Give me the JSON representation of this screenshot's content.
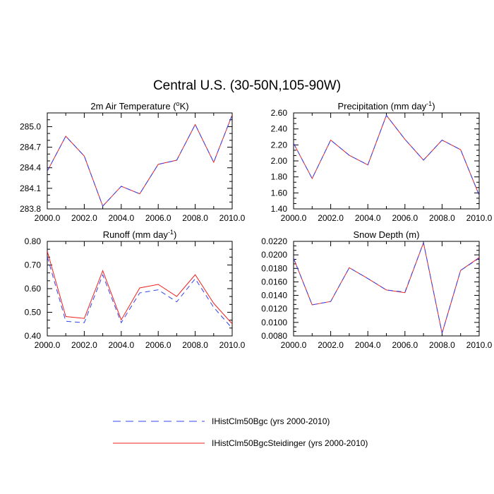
{
  "figure_title": "Central U.S. (30-50N,105-90W)",
  "legend": {
    "entries": [
      {
        "label": "IHistClm50Bgc (yrs 2000-2010)",
        "color": "#3344ee",
        "style": "dashed"
      },
      {
        "label": "IHistClm50BgcSteidinger (yrs 2000-2010)",
        "color": "#ee2222",
        "style": "solid"
      }
    ]
  },
  "chart_data": [
    {
      "type": "line",
      "title": "2m Air Temperature",
      "title_units_base": "K",
      "title_units_sup": "o",
      "xlim": [
        2000,
        2010
      ],
      "ylim": [
        283.8,
        285.2
      ],
      "xticks": [
        "2000.0",
        "2002.0",
        "2004.0",
        "2006.0",
        "2008.0",
        "2010.0"
      ],
      "yticks": [
        "283.8",
        "284.1",
        "284.4",
        "284.7",
        "285.0"
      ],
      "ytick_values": [
        283.8,
        284.1,
        284.4,
        284.7,
        285.0
      ],
      "x": [
        2000,
        2001,
        2002,
        2003,
        2004,
        2005,
        2006,
        2007,
        2008,
        2009,
        2010
      ],
      "series": [
        {
          "name": "IHistClm50Bgc (yrs 2000-2010)",
          "values": [
            284.35,
            284.86,
            284.57,
            283.84,
            284.13,
            284.02,
            284.45,
            284.51,
            285.03,
            284.48,
            285.17
          ]
        },
        {
          "name": "IHistClm50BgcSteidinger (yrs 2000-2010)",
          "values": [
            284.35,
            284.86,
            284.57,
            283.84,
            284.13,
            284.02,
            284.45,
            284.51,
            285.03,
            284.48,
            285.17
          ]
        }
      ]
    },
    {
      "type": "line",
      "title": "Precipitation",
      "title_units_base": "mm day",
      "title_units_sup": "-1",
      "xlim": [
        2000,
        2010
      ],
      "ylim": [
        1.4,
        2.6
      ],
      "xticks": [
        "2000.0",
        "2002.0",
        "2004.0",
        "2006.0",
        "2008.0",
        "2010.0"
      ],
      "yticks": [
        "1.40",
        "1.60",
        "1.80",
        "2.00",
        "2.20",
        "2.40",
        "2.60"
      ],
      "ytick_values": [
        1.4,
        1.6,
        1.8,
        2.0,
        2.2,
        2.4,
        2.6
      ],
      "x": [
        2000,
        2001,
        2002,
        2003,
        2004,
        2005,
        2006,
        2007,
        2008,
        2009,
        2010
      ],
      "series": [
        {
          "name": "IHistClm50Bgc (yrs 2000-2010)",
          "values": [
            2.22,
            1.78,
            2.26,
            2.07,
            1.95,
            2.57,
            2.27,
            2.01,
            2.26,
            2.14,
            1.57
          ]
        },
        {
          "name": "IHistClm50BgcSteidinger (yrs 2000-2010)",
          "values": [
            2.22,
            1.78,
            2.26,
            2.07,
            1.95,
            2.57,
            2.27,
            2.01,
            2.26,
            2.14,
            1.57
          ]
        }
      ]
    },
    {
      "type": "line",
      "title": "Runoff",
      "title_units_base": "mm day",
      "title_units_sup": "-1",
      "xlim": [
        2000,
        2010
      ],
      "ylim": [
        0.4,
        0.8
      ],
      "xticks": [
        "2000.0",
        "2002.0",
        "2004.0",
        "2006.0",
        "2008.0",
        "2010.0"
      ],
      "yticks": [
        "0.40",
        "0.50",
        "0.60",
        "0.70",
        "0.80"
      ],
      "ytick_values": [
        0.4,
        0.5,
        0.6,
        0.7,
        0.8
      ],
      "x": [
        2000,
        2001,
        2002,
        2003,
        2004,
        2005,
        2006,
        2007,
        2008,
        2009,
        2010
      ],
      "series": [
        {
          "name": "IHistClm50Bgc (yrs 2000-2010)",
          "values": [
            0.735,
            0.462,
            0.456,
            0.658,
            0.456,
            0.582,
            0.595,
            0.544,
            0.642,
            0.521,
            0.432
          ]
        },
        {
          "name": "IHistClm50BgcSteidinger (yrs 2000-2010)",
          "values": [
            0.758,
            0.482,
            0.474,
            0.676,
            0.468,
            0.603,
            0.618,
            0.567,
            0.659,
            0.538,
            0.451
          ]
        }
      ]
    },
    {
      "type": "line",
      "title": "Snow Depth",
      "title_units_base": "m",
      "title_units_sup": "",
      "xlim": [
        2000,
        2010
      ],
      "ylim": [
        0.008,
        0.022
      ],
      "xticks": [
        "2000.0",
        "2002.0",
        "2004.0",
        "2006.0",
        "2008.0",
        "2010.0"
      ],
      "yticks": [
        "0.0080",
        "0.0100",
        "0.0120",
        "0.0140",
        "0.0160",
        "0.0180",
        "0.0200",
        "0.0220"
      ],
      "ytick_values": [
        0.008,
        0.01,
        0.012,
        0.014,
        0.016,
        0.018,
        0.02,
        0.022
      ],
      "x": [
        2000,
        2001,
        2002,
        2003,
        2004,
        2005,
        2006,
        2007,
        2008,
        2009,
        2010
      ],
      "series": [
        {
          "name": "IHistClm50Bgc (yrs 2000-2010)",
          "values": [
            0.0195,
            0.0126,
            0.0131,
            0.0181,
            0.0165,
            0.0148,
            0.0145,
            0.0218,
            0.0084,
            0.0177,
            0.0195
          ]
        },
        {
          "name": "IHistClm50BgcSteidinger (yrs 2000-2010)",
          "values": [
            0.0195,
            0.0126,
            0.0131,
            0.0181,
            0.0165,
            0.0148,
            0.0144,
            0.0218,
            0.0084,
            0.0177,
            0.0196
          ]
        }
      ]
    }
  ]
}
